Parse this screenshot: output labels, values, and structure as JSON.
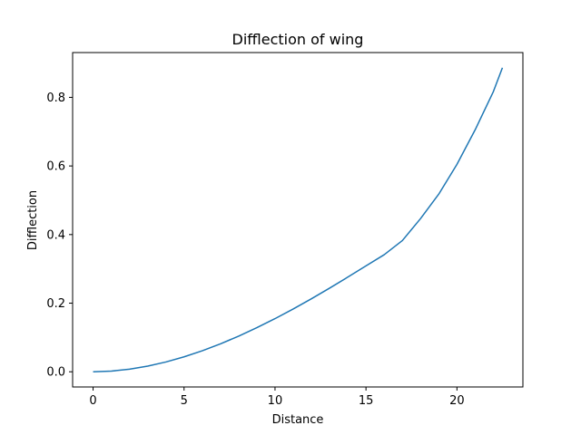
{
  "chart_data": {
    "type": "line",
    "title": "Difflection of wing",
    "xlabel": "Distance",
    "ylabel": "Difflection",
    "xlim": [
      -1.125,
      23.625
    ],
    "ylim": [
      -0.0443,
      0.9306
    ],
    "xticks": [
      0,
      5,
      10,
      15,
      20
    ],
    "yticks": [
      0.0,
      0.2,
      0.4,
      0.6,
      0.8
    ],
    "xtick_labels": [
      "0",
      "5",
      "10",
      "15",
      "20"
    ],
    "ytick_labels": [
      "0.0",
      "0.2",
      "0.4",
      "0.6",
      "0.8"
    ],
    "grid": false,
    "legend": "none",
    "series": [
      {
        "color": "#1f77b4",
        "x": [
          0,
          1,
          2,
          3,
          4,
          5,
          6,
          7,
          8,
          9,
          10,
          11,
          12,
          13,
          14,
          15,
          16,
          17,
          18,
          19,
          20,
          21,
          22,
          22.5
        ],
        "y": [
          0.0,
          0.0019,
          0.0075,
          0.0164,
          0.0285,
          0.0435,
          0.0612,
          0.0814,
          0.1039,
          0.1285,
          0.1549,
          0.1831,
          0.2128,
          0.2438,
          0.276,
          0.3087,
          0.3413,
          0.3826,
          0.4466,
          0.5179,
          0.6046,
          0.7053,
          0.8166,
          0.8863
        ]
      }
    ]
  }
}
